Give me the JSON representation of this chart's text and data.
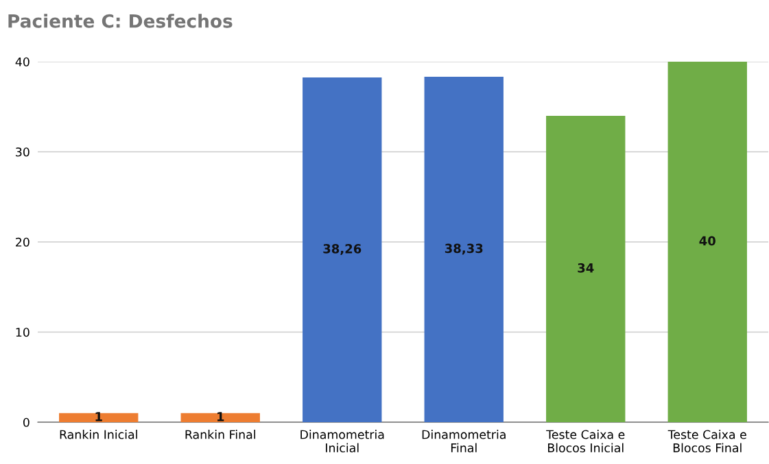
{
  "chart_data": {
    "type": "bar",
    "title": "Paciente C: Desfechos",
    "categories": [
      "Rankin Inicial",
      "Rankin Final",
      "Dinamometria\nInicial",
      "Dinamometria\nFinal",
      "Teste Caixa e\nBlocos Inicial",
      "Teste Caixa e\nBlocos Final"
    ],
    "values": [
      1,
      1,
      38.26,
      38.33,
      34,
      40
    ],
    "colors": [
      "#ed7d31",
      "#ed7d31",
      "#4472c4",
      "#4472c4",
      "#70ad47",
      "#70ad47"
    ],
    "value_labels": [
      "1",
      "1",
      "38,26",
      "38,33",
      "34",
      "40"
    ],
    "ylim": [
      0,
      40
    ],
    "yticks": [
      0,
      10,
      20,
      30,
      40
    ],
    "grid": "y",
    "legend": false
  }
}
